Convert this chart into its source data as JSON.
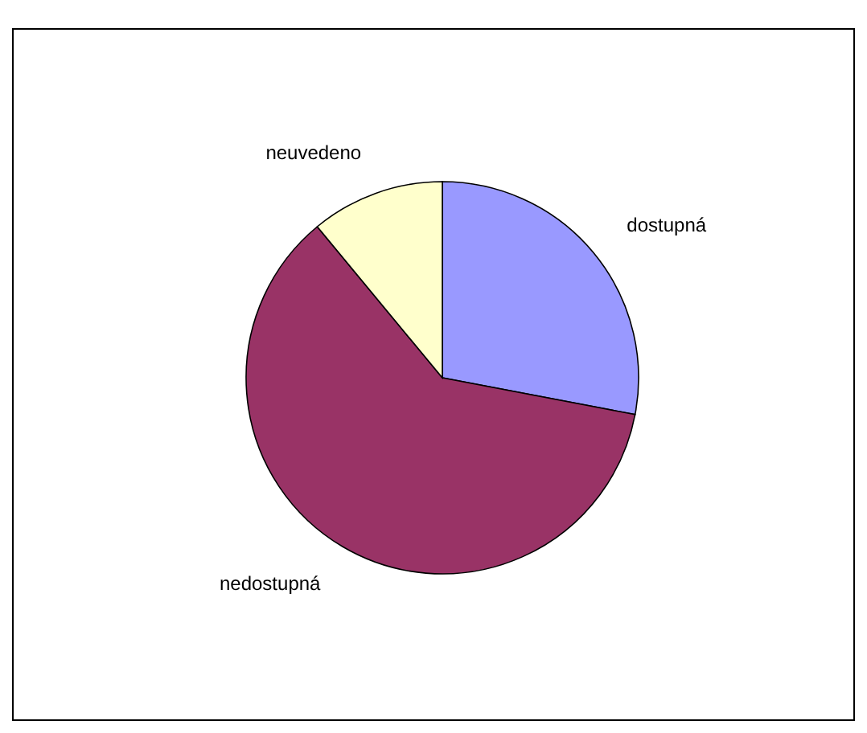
{
  "chart_data": {
    "type": "pie",
    "categories": [
      "dostupná",
      "nedostupná",
      "neuvedeno"
    ],
    "values": [
      28,
      61,
      11
    ],
    "colors": [
      "#9999ff",
      "#993366",
      "#ffffcc"
    ]
  }
}
